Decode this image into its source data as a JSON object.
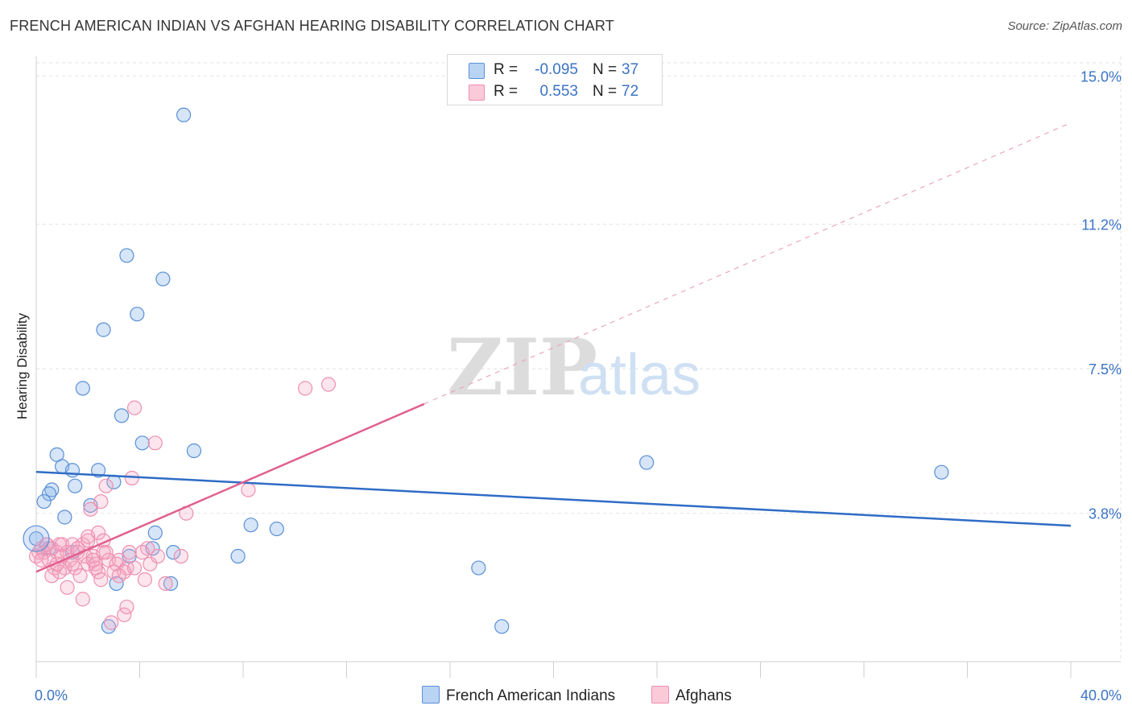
{
  "header": {
    "title": "FRENCH AMERICAN INDIAN VS AFGHAN HEARING DISABILITY CORRELATION CHART",
    "source": "Source: ZipAtlas.com"
  },
  "stats": {
    "series": [
      {
        "r_label": "R =",
        "r_value": "-0.095",
        "n_label": "N =",
        "n_value": "37",
        "color": "#5a8fd6"
      },
      {
        "r_label": "R =",
        "r_value": "0.553",
        "n_label": "N =",
        "n_value": "72",
        "color": "#ee8fb0"
      }
    ]
  },
  "watermark": {
    "zip": "ZIP",
    "atlas": "atlas"
  },
  "legend": {
    "items": [
      "French American Indians",
      "Afghans"
    ]
  },
  "chart_data": {
    "type": "scatter",
    "title": "FRENCH AMERICAN INDIAN VS AFGHAN HEARING DISABILITY CORRELATION CHART",
    "xlabel": "",
    "ylabel": "Hearing Disability",
    "xlim": [
      0,
      40
    ],
    "ylim": [
      0,
      15.5
    ],
    "x_tick_labels": [
      "0.0%",
      "40.0%"
    ],
    "y_ticks": [
      3.8,
      7.5,
      11.2,
      15.0
    ],
    "y_tick_labels": [
      "3.8%",
      "7.5%",
      "11.2%",
      "15.0%"
    ],
    "grid": true,
    "legend_position": "bottom-center",
    "series": [
      {
        "name": "French American Indians",
        "color": "#5a8fd6",
        "fill": "rgba(138,180,235,0.35)",
        "trend": {
          "x": [
            0,
            40
          ],
          "y": [
            4.86,
            3.48
          ],
          "dashed_extension": false
        },
        "points": [
          [
            5.7,
            14.0
          ],
          [
            3.5,
            10.4
          ],
          [
            4.9,
            9.8
          ],
          [
            3.9,
            8.9
          ],
          [
            2.6,
            8.5
          ],
          [
            1.8,
            7.0
          ],
          [
            3.3,
            6.3
          ],
          [
            4.1,
            5.6
          ],
          [
            6.1,
            5.4
          ],
          [
            0.8,
            5.3
          ],
          [
            1.0,
            5.0
          ],
          [
            1.4,
            4.9
          ],
          [
            2.4,
            4.9
          ],
          [
            1.5,
            4.5
          ],
          [
            3.0,
            4.6
          ],
          [
            0.6,
            4.4
          ],
          [
            0.5,
            4.3
          ],
          [
            0.3,
            4.1
          ],
          [
            2.1,
            4.0
          ],
          [
            1.1,
            3.7
          ],
          [
            8.3,
            3.5
          ],
          [
            9.3,
            3.4
          ],
          [
            4.6,
            3.3
          ],
          [
            0.0,
            3.15
          ],
          [
            0.5,
            2.9
          ],
          [
            1.4,
            2.8
          ],
          [
            4.5,
            2.9
          ],
          [
            5.3,
            2.8
          ],
          [
            3.6,
            2.7
          ],
          [
            7.8,
            2.7
          ],
          [
            17.1,
            2.4
          ],
          [
            3.1,
            2.0
          ],
          [
            5.2,
            2.0
          ],
          [
            2.8,
            0.9
          ],
          [
            18.0,
            0.9
          ],
          [
            23.6,
            5.1
          ],
          [
            35.0,
            4.85
          ]
        ]
      },
      {
        "name": "Afghans",
        "color": "#ee8fb0",
        "fill": "rgba(245,170,195,0.30)",
        "trend": {
          "x": [
            0,
            15.0
          ],
          "y": [
            2.3,
            6.6
          ],
          "dashed_extension": {
            "x": [
              15.0,
              40
            ],
            "y": [
              6.6,
              13.8
            ]
          }
        },
        "points": [
          [
            10.4,
            7.0
          ],
          [
            11.3,
            7.1
          ],
          [
            3.8,
            6.5
          ],
          [
            4.6,
            5.6
          ],
          [
            3.7,
            4.7
          ],
          [
            8.2,
            4.4
          ],
          [
            2.7,
            4.5
          ],
          [
            2.5,
            4.1
          ],
          [
            2.1,
            3.9
          ],
          [
            5.8,
            3.8
          ],
          [
            2.4,
            3.3
          ],
          [
            2.6,
            3.1
          ],
          [
            1.8,
            3.0
          ],
          [
            2.0,
            3.1
          ],
          [
            1.4,
            3.0
          ],
          [
            0.9,
            3.0
          ],
          [
            0.4,
            3.0
          ],
          [
            0.2,
            2.9
          ],
          [
            0.6,
            2.9
          ],
          [
            1.2,
            2.8
          ],
          [
            1.6,
            2.8
          ],
          [
            2.2,
            2.7
          ],
          [
            2.7,
            2.8
          ],
          [
            4.3,
            2.9
          ],
          [
            0.1,
            2.8
          ],
          [
            0.3,
            2.8
          ],
          [
            0.8,
            2.8
          ],
          [
            1.0,
            2.7
          ],
          [
            1.9,
            2.7
          ],
          [
            2.8,
            2.6
          ],
          [
            3.2,
            2.6
          ],
          [
            3.6,
            2.8
          ],
          [
            4.1,
            2.8
          ],
          [
            5.6,
            2.7
          ],
          [
            0.0,
            2.7
          ],
          [
            0.5,
            2.6
          ],
          [
            1.3,
            2.6
          ],
          [
            2.0,
            2.5
          ],
          [
            2.3,
            2.5
          ],
          [
            3.1,
            2.5
          ],
          [
            3.5,
            2.4
          ],
          [
            4.4,
            2.5
          ],
          [
            0.7,
            2.4
          ],
          [
            1.1,
            2.4
          ],
          [
            1.5,
            2.4
          ],
          [
            2.4,
            2.3
          ],
          [
            3.0,
            2.3
          ],
          [
            3.4,
            2.3
          ],
          [
            0.6,
            2.2
          ],
          [
            1.7,
            2.2
          ],
          [
            2.5,
            2.1
          ],
          [
            3.2,
            2.2
          ],
          [
            4.2,
            2.1
          ],
          [
            1.2,
            1.9
          ],
          [
            5.0,
            2.0
          ],
          [
            0.9,
            2.3
          ],
          [
            1.8,
            1.6
          ],
          [
            3.4,
            1.2
          ],
          [
            2.9,
            1.0
          ],
          [
            3.5,
            1.4
          ],
          [
            2.3,
            2.4
          ],
          [
            1.6,
            2.9
          ],
          [
            0.4,
            3.0
          ],
          [
            2.0,
            3.2
          ],
          [
            1.0,
            3.0
          ],
          [
            2.6,
            2.8
          ],
          [
            3.8,
            2.4
          ],
          [
            0.2,
            2.6
          ],
          [
            1.4,
            2.5
          ],
          [
            2.2,
            2.6
          ],
          [
            4.7,
            2.7
          ],
          [
            0.8,
            2.5
          ]
        ]
      }
    ]
  }
}
